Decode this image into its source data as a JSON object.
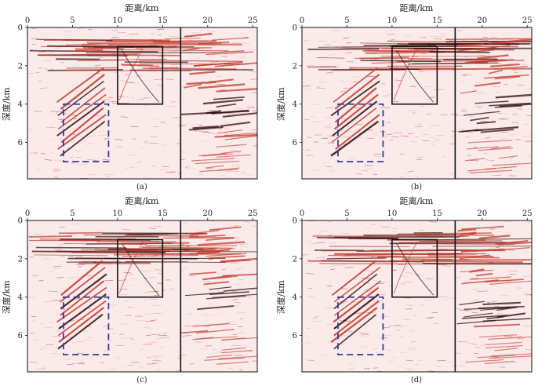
{
  "figure": {
    "panels": [
      {
        "id": "a",
        "caption": "(a)"
      },
      {
        "id": "b",
        "caption": "(b)"
      },
      {
        "id": "c",
        "caption": "(c)"
      },
      {
        "id": "d",
        "caption": "(d)"
      }
    ],
    "x_axis_label": "距离/km",
    "y_axis_label": "深度/km",
    "x_ticks": [
      "0",
      "5",
      "10",
      "15",
      "20",
      "25"
    ],
    "y_ticks": [
      "0",
      "2",
      "4",
      "6"
    ],
    "x_range_km": [
      0,
      25.5
    ],
    "y_range_km": [
      0,
      7.9
    ],
    "solid_box_km": {
      "x": [
        10,
        15
      ],
      "y": [
        1,
        4
      ]
    },
    "dashed_box_km": {
      "x": [
        4,
        9
      ],
      "y": [
        4,
        7
      ]
    },
    "vertical_line_km": 17,
    "colors": {
      "frame": "#111111",
      "dashed_box": "#3a3a9a",
      "seismic_red": "#c0392b",
      "seismic_dark": "#2a0a0a"
    }
  }
}
